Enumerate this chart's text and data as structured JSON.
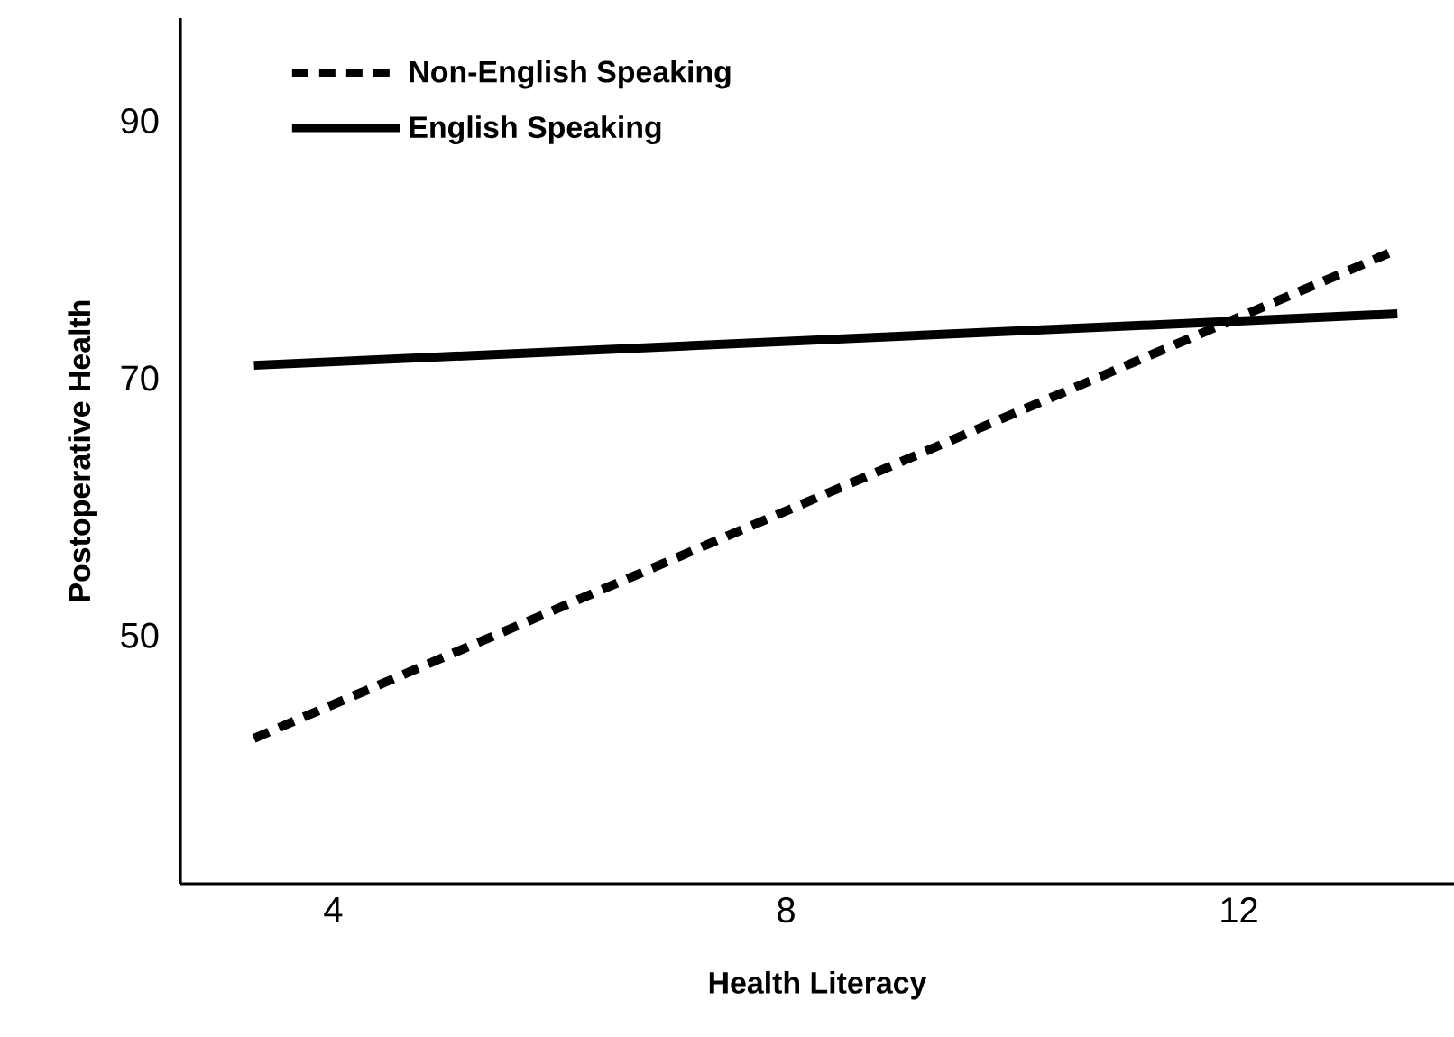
{
  "chart_data": {
    "type": "line",
    "xlabel": "Health Literacy",
    "ylabel": "Postoperative Health",
    "xlim": [
      2.65,
      13.9
    ],
    "ylim": [
      30.7,
      98
    ],
    "xticks": [
      4,
      8,
      12
    ],
    "yticks": [
      50,
      70,
      90
    ],
    "legend": "top left",
    "grid": false,
    "marker": "none",
    "x": [
      3.3,
      13.4
    ],
    "series": [
      {
        "name": "Non-English Speaking",
        "color": "#000000",
        "line_style": "dashed",
        "values": [
          42,
          80
        ]
      },
      {
        "name": "English Speaking",
        "color": "#000000",
        "line_style": "solid",
        "values": [
          71,
          75
        ]
      }
    ]
  }
}
